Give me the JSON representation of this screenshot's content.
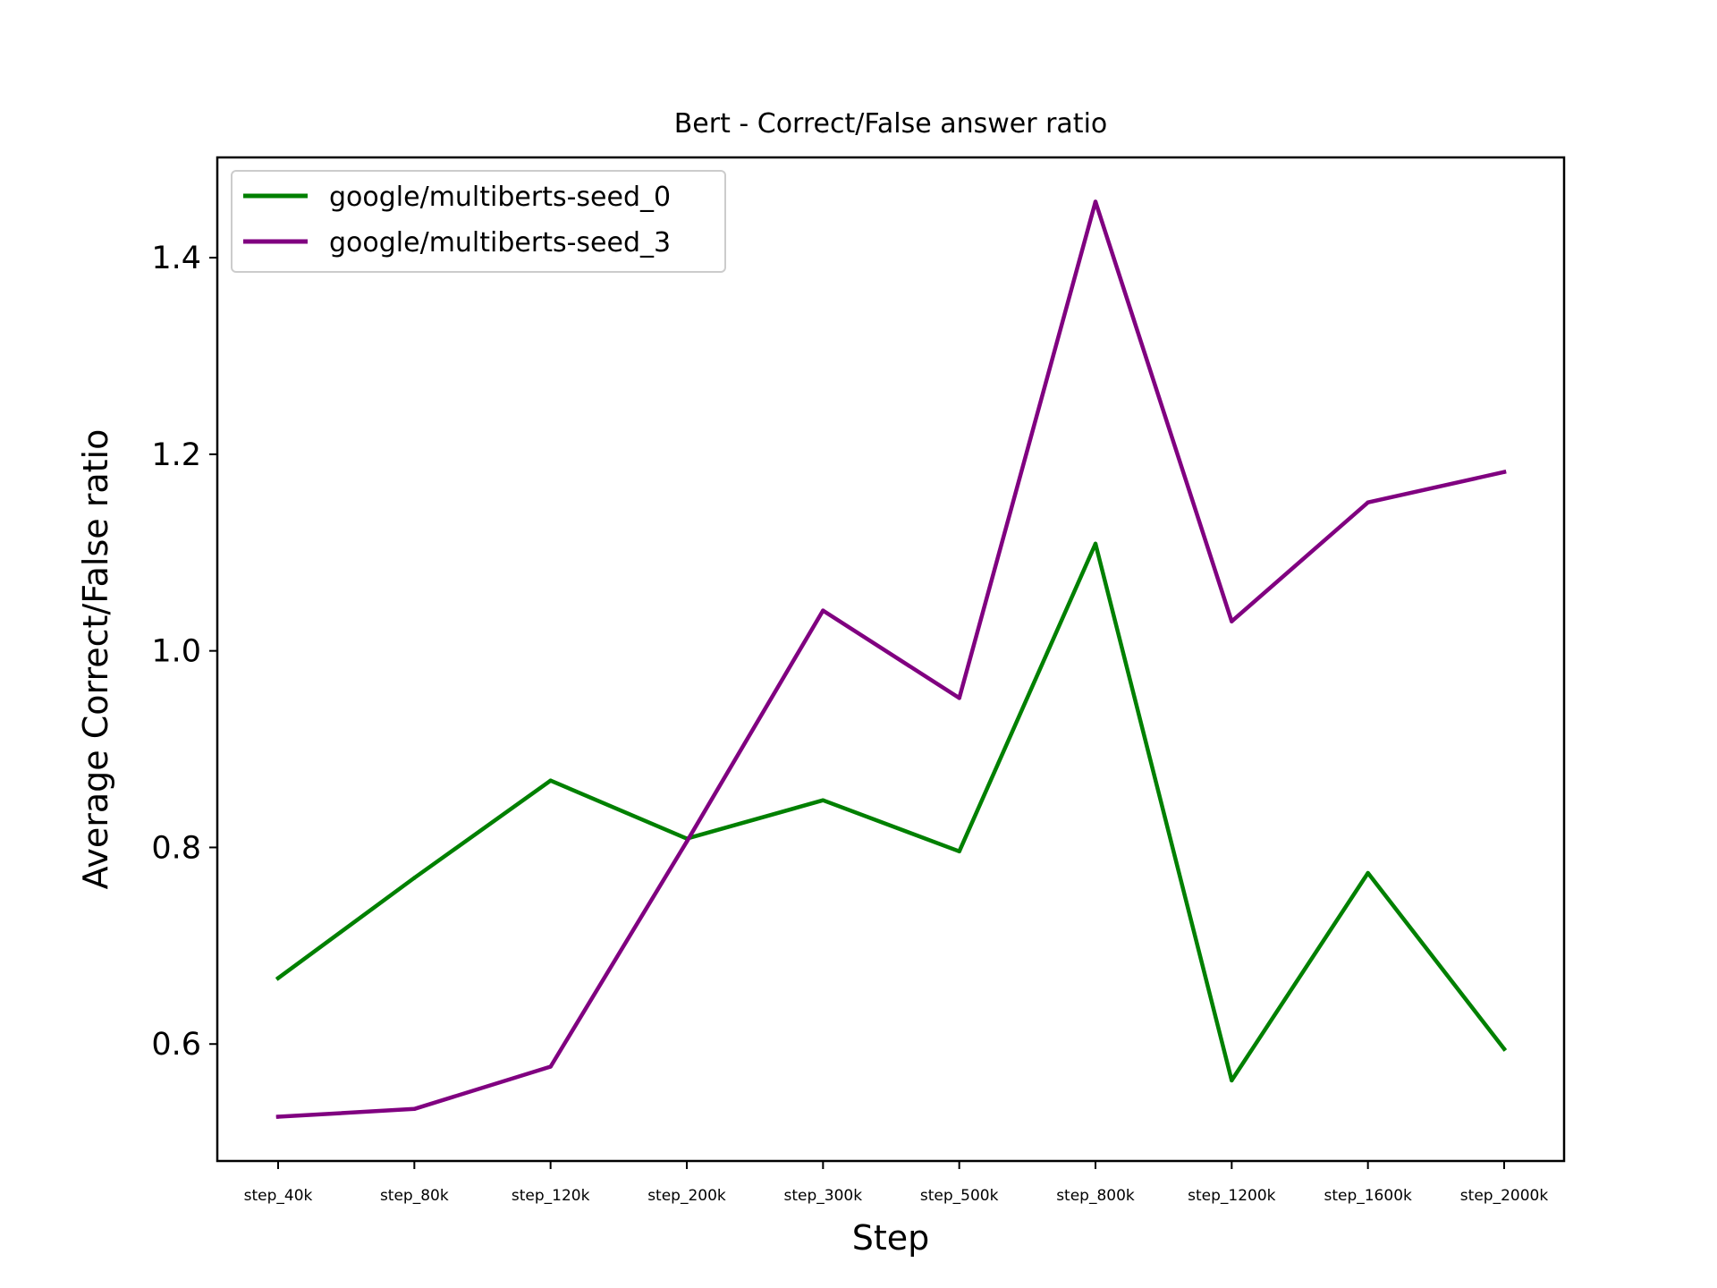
{
  "chart_data": {
    "type": "line",
    "title": "Bert - Correct/False answer ratio",
    "xlabel": "Step",
    "ylabel": "Average Correct/False ratio",
    "categories": [
      "step_40k",
      "step_80k",
      "step_120k",
      "step_200k",
      "step_300k",
      "step_500k",
      "step_800k",
      "step_1200k",
      "step_1600k",
      "step_2000k"
    ],
    "series": [
      {
        "name": "google/multiberts-seed_0",
        "color": "#008000",
        "values": [
          0.667,
          0.769,
          0.868,
          0.809,
          0.848,
          0.796,
          1.109,
          0.563,
          0.774,
          0.595
        ]
      },
      {
        "name": "google/multiberts-seed_3",
        "color": "#800080",
        "values": [
          0.526,
          0.534,
          0.577,
          0.806,
          1.041,
          0.952,
          1.457,
          1.03,
          1.151,
          1.182
        ]
      }
    ],
    "yticks": [
      "0.6",
      "0.8",
      "1.0",
      "1.2",
      "1.4"
    ],
    "ylim": [
      0.481,
      1.502
    ],
    "grid": false,
    "legend": "upper left"
  }
}
